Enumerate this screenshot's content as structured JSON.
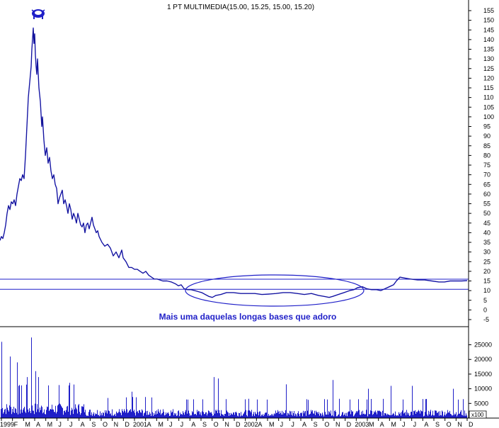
{
  "chart_data": [
    {
      "type": "line",
      "title": "1 PT MULTIMEDIA(15.00, 15.25, 15.00, 15.20)",
      "annotation": "Mais uma daquelas longas bases que adoro",
      "ylim": [
        -5,
        155
      ],
      "y_ticks": [
        "155",
        "150",
        "145",
        "140",
        "135",
        "130",
        "125",
        "120",
        "115",
        "110",
        "105",
        "100",
        "95",
        "90",
        "85",
        "80",
        "75",
        "70",
        "65",
        "60",
        "55",
        "50",
        "45",
        "40",
        "35",
        "30",
        "25",
        "20",
        "15",
        "10",
        "5",
        "0",
        "-5"
      ],
      "x_tick_labels": [
        "1999",
        "F",
        "M",
        "A",
        "M",
        "J",
        "J",
        "A",
        "S",
        "O",
        "N",
        "D",
        "2001",
        "A",
        "M",
        "J",
        "J",
        "A",
        "S",
        "O",
        "N",
        "D",
        "2002",
        "A",
        "M",
        "J",
        "J",
        "A",
        "S",
        "O",
        "N",
        "D",
        "2003",
        "M",
        "A",
        "M",
        "J",
        "J",
        "A",
        "S",
        "O",
        "N",
        "D"
      ],
      "levels": [
        {
          "name": "resistance",
          "y": 15.9
        },
        {
          "name": "support",
          "y": 10.7
        }
      ],
      "series": [
        {
          "color": "#1f1fc8",
          "points": [
            [
              0,
              36
            ],
            [
              2,
              38
            ],
            [
              4,
              37
            ],
            [
              6,
              40
            ],
            [
              8,
              44
            ],
            [
              10,
              50
            ],
            [
              12,
              54
            ],
            [
              14,
              52
            ],
            [
              16,
              56
            ],
            [
              18,
              55
            ],
            [
              20,
              57
            ],
            [
              22,
              54
            ],
            [
              24,
              60
            ],
            [
              26,
              64
            ],
            [
              28,
              68
            ],
            [
              30,
              67
            ],
            [
              32,
              70
            ],
            [
              34,
              68
            ],
            [
              36,
              80
            ],
            [
              38,
              95
            ],
            [
              40,
              110
            ],
            [
              42,
              118
            ],
            [
              44,
              126
            ],
            [
              45,
              135
            ],
            [
              47,
              146
            ],
            [
              48,
              138
            ],
            [
              49,
              143
            ],
            [
              50,
              132
            ],
            [
              51,
              126
            ],
            [
              52,
              122
            ],
            [
              53,
              130
            ],
            [
              55,
              115
            ],
            [
              57,
              108
            ],
            [
              59,
              95
            ],
            [
              60,
              100
            ],
            [
              62,
              88
            ],
            [
              64,
              80
            ],
            [
              66,
              84
            ],
            [
              68,
              76
            ],
            [
              70,
              79
            ],
            [
              72,
              72
            ],
            [
              74,
              68
            ],
            [
              76,
              70
            ],
            [
              78,
              65
            ],
            [
              80,
              63
            ],
            [
              82,
              55
            ],
            [
              84,
              58
            ],
            [
              86,
              60
            ],
            [
              88,
              62
            ],
            [
              90,
              55
            ],
            [
              92,
              57
            ],
            [
              94,
              54
            ],
            [
              96,
              50
            ],
            [
              98,
              55
            ],
            [
              100,
              52
            ],
            [
              102,
              47
            ],
            [
              104,
              50
            ],
            [
              106,
              48
            ],
            [
              108,
              45
            ],
            [
              110,
              50
            ],
            [
              112,
              47
            ],
            [
              114,
              44
            ],
            [
              116,
              43
            ],
            [
              118,
              45
            ],
            [
              120,
              40
            ],
            [
              122,
              44
            ],
            [
              124,
              45
            ],
            [
              126,
              42
            ],
            [
              130,
              48
            ],
            [
              132,
              44
            ],
            [
              134,
              42
            ],
            [
              136,
              40
            ],
            [
              138,
              41
            ],
            [
              140,
              38
            ],
            [
              144,
              35
            ],
            [
              148,
              33
            ],
            [
              152,
              34
            ],
            [
              156,
              32
            ],
            [
              160,
              28
            ],
            [
              164,
              30
            ],
            [
              168,
              27
            ],
            [
              170,
              29
            ],
            [
              172,
              31
            ],
            [
              174,
              27
            ],
            [
              178,
              25
            ],
            [
              182,
              22
            ],
            [
              186,
              22
            ],
            [
              190,
              21
            ],
            [
              194,
              21
            ],
            [
              198,
              20
            ],
            [
              202,
              19
            ],
            [
              206,
              20
            ],
            [
              210,
              18
            ],
            [
              214,
              17
            ],
            [
              218,
              16
            ],
            [
              222,
              16
            ],
            [
              226,
              15.5
            ],
            [
              230,
              15
            ],
            [
              236,
              15
            ],
            [
              242,
              14.5
            ],
            [
              248,
              13.5
            ],
            [
              252,
              12.5
            ],
            [
              256,
              13
            ],
            [
              260,
              11
            ],
            [
              265,
              10.5
            ],
            [
              270,
              10.5
            ],
            [
              275,
              10
            ],
            [
              280,
              9.5
            ],
            [
              285,
              9
            ],
            [
              290,
              8
            ],
            [
              295,
              7
            ],
            [
              300,
              6.5
            ],
            [
              305,
              7.5
            ],
            [
              312,
              8
            ],
            [
              320,
              9
            ],
            [
              330,
              9
            ],
            [
              340,
              8.5
            ],
            [
              350,
              8.5
            ],
            [
              360,
              8.5
            ],
            [
              370,
              8
            ],
            [
              380,
              8.2
            ],
            [
              390,
              8.5
            ],
            [
              400,
              9
            ],
            [
              410,
              9
            ],
            [
              420,
              8.5
            ],
            [
              430,
              8
            ],
            [
              440,
              8.5
            ],
            [
              450,
              7.5
            ],
            [
              458,
              7
            ],
            [
              465,
              6.5
            ],
            [
              470,
              7
            ],
            [
              478,
              8
            ],
            [
              486,
              9
            ],
            [
              494,
              10
            ],
            [
              500,
              10.5
            ],
            [
              505,
              11.5
            ],
            [
              512,
              12
            ],
            [
              518,
              11
            ],
            [
              525,
              10.5
            ],
            [
              532,
              10.5
            ],
            [
              538,
              10
            ],
            [
              544,
              11
            ],
            [
              550,
              12
            ],
            [
              556,
              13
            ],
            [
              560,
              15
            ],
            [
              565,
              17
            ],
            [
              572,
              16.5
            ],
            [
              580,
              16
            ],
            [
              590,
              15.5
            ],
            [
              600,
              15.5
            ],
            [
              610,
              15
            ],
            [
              620,
              14.5
            ],
            [
              628,
              14.5
            ],
            [
              636,
              15
            ],
            [
              644,
              15
            ],
            [
              652,
              15
            ],
            [
              660,
              15.2
            ]
          ]
        }
      ]
    },
    {
      "type": "bar",
      "y_ticks": [
        "25000",
        "20000",
        "15000",
        "10000",
        "5000"
      ],
      "y_unit": "x100",
      "ylim": [
        0,
        29000
      ]
    }
  ]
}
